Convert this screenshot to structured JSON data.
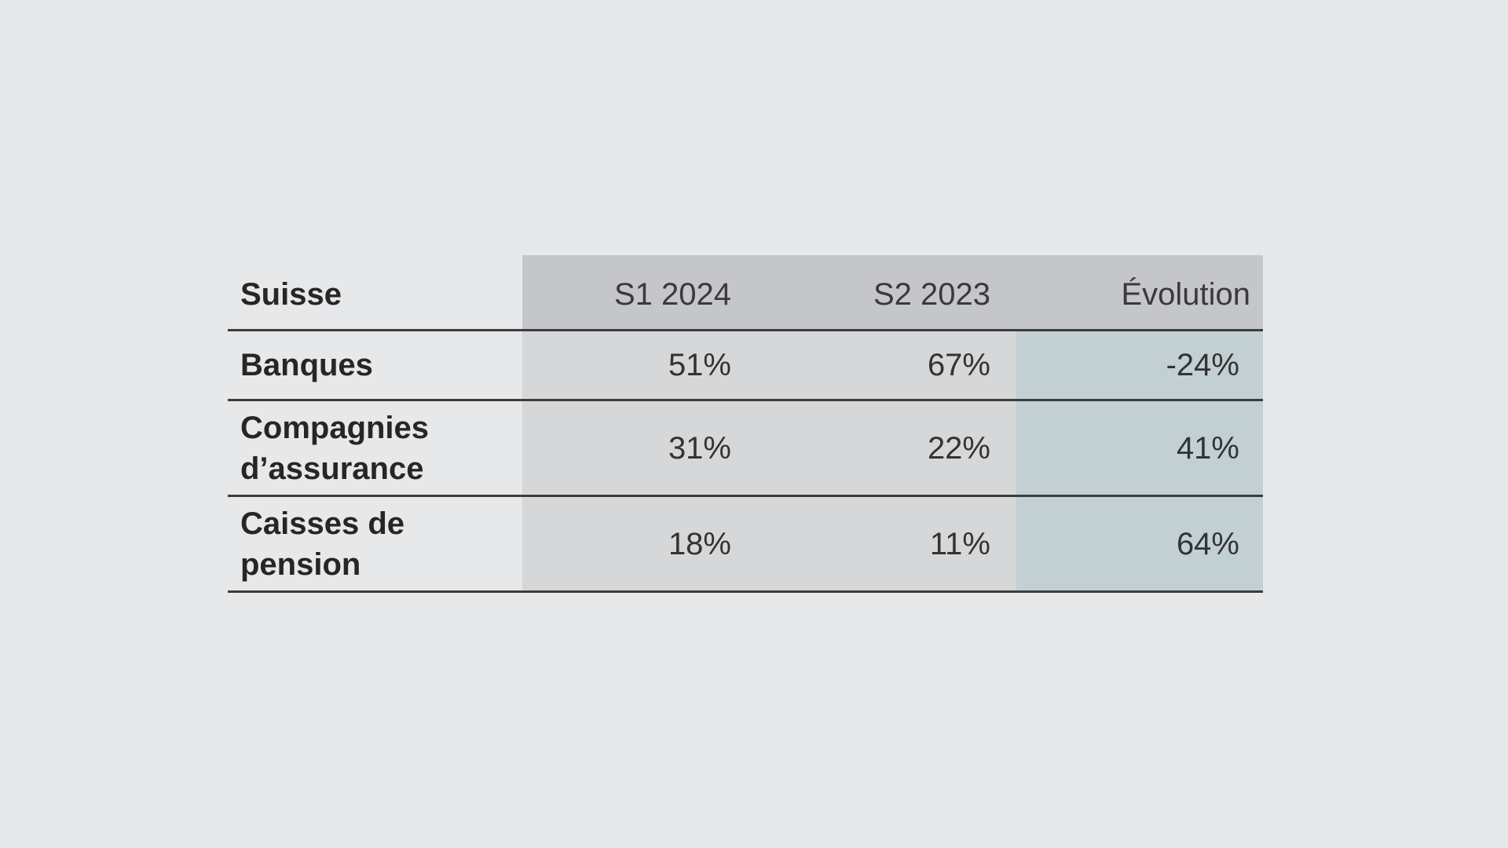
{
  "chart_data": {
    "type": "table",
    "columns": [
      "Suisse",
      "S1 2024",
      "S2 2023",
      "Évolution"
    ],
    "rows": [
      {
        "label": "Banques",
        "s1_2024": "51%",
        "s2_2023": "67%",
        "evolution": "-24%"
      },
      {
        "label": "Compagnies d’assurance",
        "s1_2024": "31%",
        "s2_2023": "22%",
        "evolution": "41%"
      },
      {
        "label": "Caisses de pension",
        "s1_2024": "18%",
        "s2_2023": "11%",
        "evolution": "64%"
      }
    ]
  },
  "colors": {
    "background": "#e7e8ea",
    "header_cell": "#c4c6c9",
    "value_cell": "#d6d7d9",
    "evolution_cell": "#c2d0d4",
    "rule": "#3c3c3c"
  }
}
